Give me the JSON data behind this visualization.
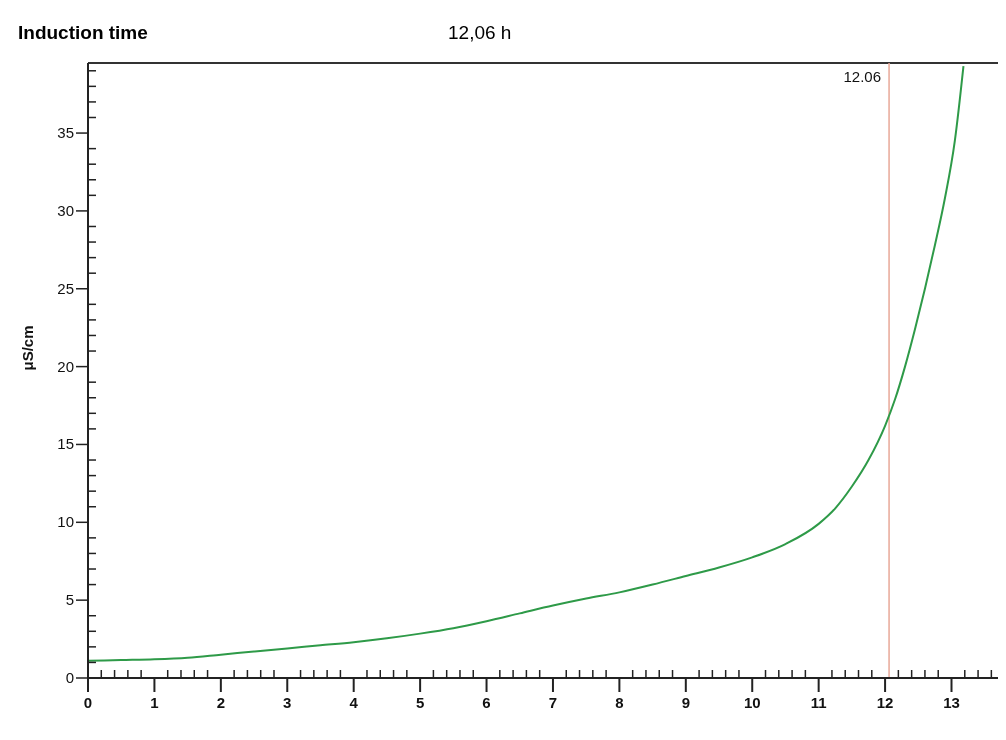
{
  "chart_data": {
    "type": "line",
    "title": "Induction time",
    "subtitle": "12,06 h",
    "ylabel": "μS/cm",
    "x": [
      0,
      0.5,
      1,
      1.5,
      2,
      2.5,
      3,
      3.5,
      4,
      4.5,
      5,
      5.5,
      6,
      6.5,
      7,
      7.5,
      8,
      8.5,
      9,
      9.5,
      10,
      10.5,
      11,
      11.25,
      11.5,
      11.75,
      12,
      12.15,
      12.3,
      12.45,
      12.6,
      12.75,
      12.9,
      13.05,
      13.18
    ],
    "series": [
      {
        "color": "#2e9a48",
        "values": [
          1.1,
          1.15,
          1.2,
          1.3,
          1.5,
          1.7,
          1.9,
          2.1,
          2.3,
          2.55,
          2.85,
          3.2,
          3.65,
          4.15,
          4.65,
          5.1,
          5.5,
          6.0,
          6.55,
          7.1,
          7.75,
          8.6,
          9.9,
          10.9,
          12.3,
          14.0,
          16.2,
          17.9,
          20.0,
          22.4,
          25.0,
          27.8,
          30.8,
          34.5,
          39.3
        ]
      }
    ],
    "xlim": [
      0,
      13.7
    ],
    "ylim": [
      0,
      39.5
    ],
    "xticks": [
      0,
      {
        "value": 0.2,
        "label": null
      },
      {
        "value": 0.4,
        "label": null
      },
      {
        "value": 0.6,
        "label": null
      },
      {
        "value": 0.8,
        "label": null
      },
      1,
      {
        "value": 1.2,
        "label": null
      },
      {
        "value": 1.4,
        "label": null
      },
      {
        "value": 1.6,
        "label": null
      },
      {
        "value": 1.8,
        "label": null
      },
      2,
      {
        "value": 2.2,
        "label": null
      },
      {
        "value": 2.4,
        "label": null
      },
      {
        "value": 2.6,
        "label": null
      },
      {
        "value": 2.8,
        "label": null
      },
      3,
      {
        "value": 3.2,
        "label": null
      },
      {
        "value": 3.4,
        "label": null
      },
      {
        "value": 3.6,
        "label": null
      },
      {
        "value": 3.8,
        "label": null
      },
      4,
      {
        "value": 4.2,
        "label": null
      },
      {
        "value": 4.4,
        "label": null
      },
      {
        "value": 4.6,
        "label": null
      },
      {
        "value": 4.8,
        "label": null
      },
      5,
      {
        "value": 5.2,
        "label": null
      },
      {
        "value": 5.4,
        "label": null
      },
      {
        "value": 5.6,
        "label": null
      },
      {
        "value": 5.8,
        "label": null
      },
      6,
      {
        "value": 6.2,
        "label": null
      },
      {
        "value": 6.4,
        "label": null
      },
      {
        "value": 6.6,
        "label": null
      },
      {
        "value": 6.8,
        "label": null
      },
      7,
      {
        "value": 7.2,
        "label": null
      },
      {
        "value": 7.4,
        "label": null
      },
      {
        "value": 7.6,
        "label": null
      },
      {
        "value": 7.8,
        "label": null
      },
      8,
      {
        "value": 8.2,
        "label": null
      },
      {
        "value": 8.4,
        "label": null
      },
      {
        "value": 8.6,
        "label": null
      },
      {
        "value": 8.8,
        "label": null
      },
      9,
      {
        "value": 9.2,
        "label": null
      },
      {
        "value": 9.4,
        "label": null
      },
      {
        "value": 9.6,
        "label": null
      },
      {
        "value": 9.8,
        "label": null
      },
      10,
      {
        "value": 10.2,
        "label": null
      },
      {
        "value": 10.4,
        "label": null
      },
      {
        "value": 10.6,
        "label": null
      },
      {
        "value": 10.8,
        "label": null
      },
      11,
      {
        "value": 11.2,
        "label": null
      },
      {
        "value": 11.4,
        "label": null
      },
      {
        "value": 11.6,
        "label": null
      },
      {
        "value": 11.8,
        "label": null
      },
      12,
      {
        "value": 12.2,
        "label": null
      },
      {
        "value": 12.4,
        "label": null
      },
      {
        "value": 12.6,
        "label": null
      },
      {
        "value": 12.8,
        "label": null
      },
      13,
      {
        "value": 13.2,
        "label": null
      },
      {
        "value": 13.4,
        "label": null
      },
      {
        "value": 13.6,
        "label": null
      }
    ],
    "yticks": [
      0,
      {
        "value": 1,
        "label": null
      },
      {
        "value": 2,
        "label": null
      },
      {
        "value": 3,
        "label": null
      },
      {
        "value": 4,
        "label": null
      },
      5,
      {
        "value": 6,
        "label": null
      },
      {
        "value": 7,
        "label": null
      },
      {
        "value": 8,
        "label": null
      },
      {
        "value": 9,
        "label": null
      },
      10,
      {
        "value": 11,
        "label": null
      },
      {
        "value": 12,
        "label": null
      },
      {
        "value": 13,
        "label": null
      },
      {
        "value": 14,
        "label": null
      },
      15,
      {
        "value": 16,
        "label": null
      },
      {
        "value": 17,
        "label": null
      },
      {
        "value": 18,
        "label": null
      },
      {
        "value": 19,
        "label": null
      },
      20,
      {
        "value": 21,
        "label": null
      },
      {
        "value": 22,
        "label": null
      },
      {
        "value": 23,
        "label": null
      },
      {
        "value": 24,
        "label": null
      },
      25,
      {
        "value": 26,
        "label": null
      },
      {
        "value": 27,
        "label": null
      },
      {
        "value": 28,
        "label": null
      },
      {
        "value": 29,
        "label": null
      },
      30,
      {
        "value": 31,
        "label": null
      },
      {
        "value": 32,
        "label": null
      },
      {
        "value": 33,
        "label": null
      },
      {
        "value": 34,
        "label": null
      },
      35,
      {
        "value": 36,
        "label": null
      },
      {
        "value": 37,
        "label": null
      },
      {
        "value": 38,
        "label": null
      },
      {
        "value": 39,
        "label": null
      }
    ],
    "ref_lines": [
      {
        "axis": "x",
        "value": 12.06,
        "label": "12.06",
        "color": "#e8a898"
      }
    ]
  }
}
